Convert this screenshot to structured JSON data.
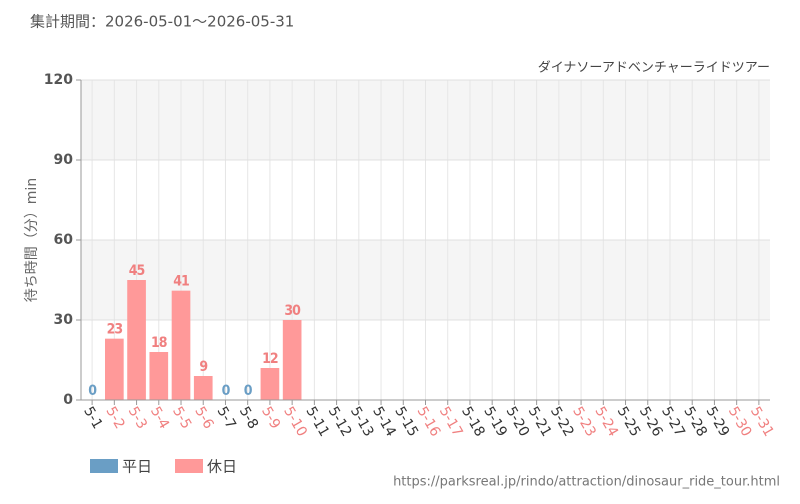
{
  "chart_data": {
    "type": "bar",
    "title": "集計期間：2026-05-01～2026-05-31",
    "subtitle": "ダイナソーアドベンチャーライドツアー",
    "y_label": "待ち時間（分）min",
    "source": "https://parksreal.jp/rindo/attraction/dinosaur_ride_tour.html",
    "categories": [
      "5-1",
      "5-2",
      "5-3",
      "5-4",
      "5-5",
      "5-6",
      "5-7",
      "5-8",
      "5-9",
      "5-10",
      "5-11",
      "5-12",
      "5-13",
      "5-14",
      "5-15",
      "5-16",
      "5-17",
      "5-18",
      "5-19",
      "5-20",
      "5-21",
      "5-22",
      "5-23",
      "5-24",
      "5-25",
      "5-26",
      "5-27",
      "5-28",
      "5-29",
      "5-30",
      "5-31"
    ],
    "category_label_colors": [
      "#333",
      "#f08080",
      "#f08080",
      "#f08080",
      "#f08080",
      "#f08080",
      "#333",
      "#333",
      "#f08080",
      "#f08080",
      "#333",
      "#333",
      "#333",
      "#333",
      "#333",
      "#f08080",
      "#f08080",
      "#333",
      "#333",
      "#333",
      "#333",
      "#333",
      "#f08080",
      "#f08080",
      "#333",
      "#333",
      "#333",
      "#333",
      "#333",
      "#f08080",
      "#f08080"
    ],
    "series": [
      {
        "name": "平日",
        "color": "#6a9ec5",
        "label_color": "#6a9ec5",
        "values": [
          0,
          null,
          null,
          null,
          null,
          null,
          0,
          0,
          null,
          null,
          null,
          null,
          null,
          null,
          null,
          null,
          null,
          null,
          null,
          null,
          null,
          null,
          null,
          null,
          null,
          null,
          null,
          null,
          null,
          null,
          null
        ]
      },
      {
        "name": "休日",
        "color": "#ff9999",
        "label_color": "#f08080",
        "values": [
          null,
          23,
          45,
          18,
          41,
          9,
          null,
          null,
          12,
          30,
          null,
          null,
          null,
          null,
          null,
          null,
          null,
          null,
          null,
          null,
          null,
          null,
          null,
          null,
          null,
          null,
          null,
          null,
          null,
          null,
          null
        ]
      }
    ],
    "ylim": [
      0,
      120
    ],
    "yticks": [
      0,
      30,
      60,
      90,
      120
    ],
    "grid": true,
    "banded": true
  }
}
